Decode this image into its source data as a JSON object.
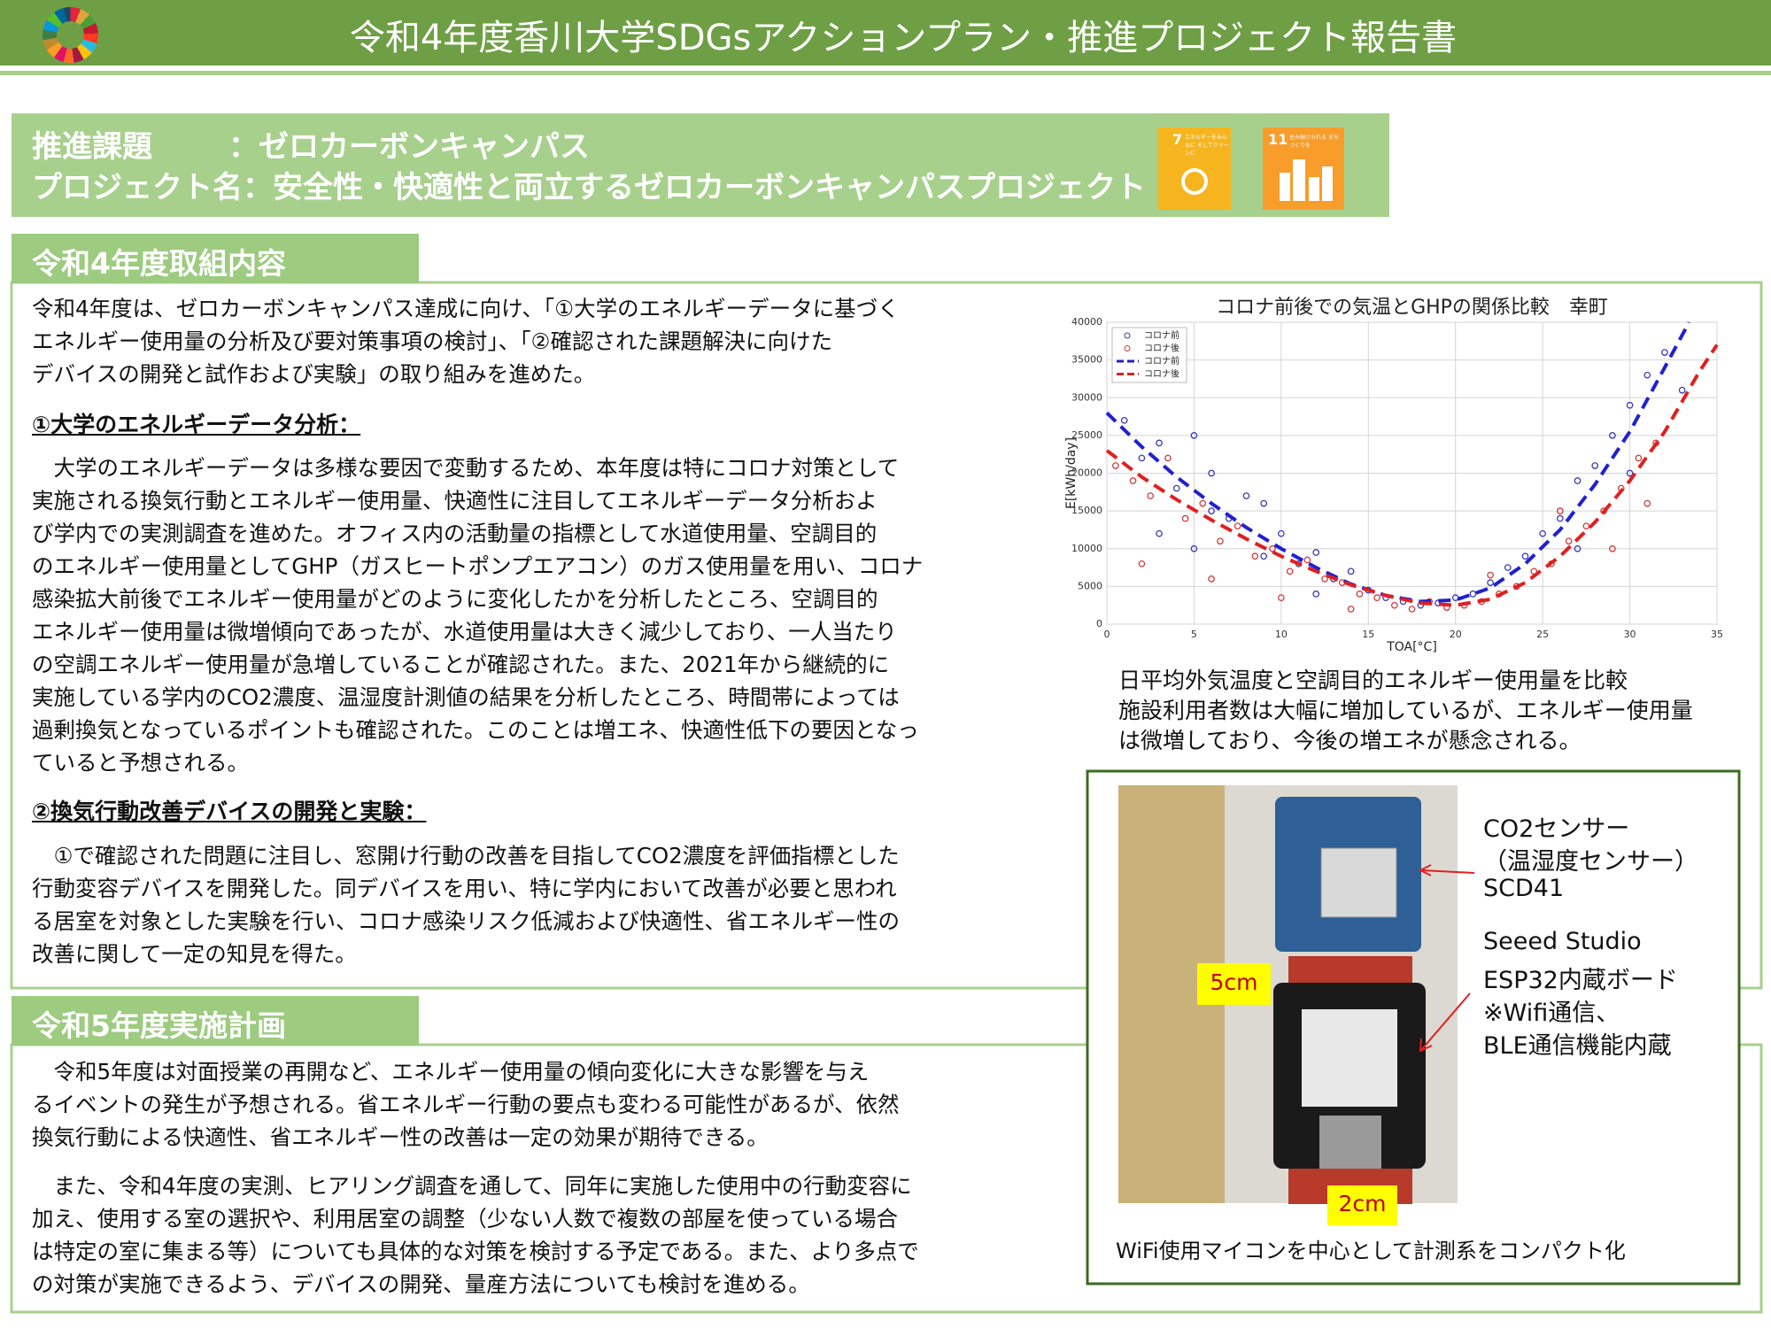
{
  "header": {
    "title": "令和4年度香川大学SDGsアクションプラン・推進プロジェクト報告書"
  },
  "project": {
    "theme_label": "推進課題",
    "theme": "：ゼロカーボンキャンパス",
    "project_line": "プロジェクト名：安全性・快適性と両立するゼロカーボンキャンパスプロジェクト"
  },
  "sdg_icons": [
    {
      "number": "7",
      "label": "エネルギーをみんなに そしてクリーンに"
    },
    {
      "number": "11",
      "label": "住み続けられる まちづくりを"
    }
  ],
  "sections": [
    {
      "heading": "令和4年度取組内容",
      "intro": [
        "令和4年度は、ゼロカーボンキャンパス達成に向け、「①大学のエネルギーデータに基づく",
        "エネルギー使用量の分析及び要対策事項の検討」、「②確認された課題解決に向けた",
        "デバイスの開発と試作および実験」の取り組みを進めた。"
      ],
      "subsections": [
        {
          "heading": "①大学のエネルギーデータ分析：",
          "lines": [
            "　大学のエネルギーデータは多様な要因で変動するため、本年度は特にコロナ対策として",
            "実施される換気行動とエネルギー使用量、快適性に注目してエネルギーデータ分析およ",
            "び学内での実測調査を進めた。オフィス内の活動量の指標として水道使用量、空調目的",
            "のエネルギー使用量としてGHP（ガスヒートポンプエアコン）のガス使用量を用い、コロナ",
            "感染拡大前後でエネルギー使用量がどのように変化したかを分析したところ、空調目的",
            "エネルギー使用量は微増傾向であったが、水道使用量は大きく減少しており、一人当たり",
            "の空調エネルギー使用量が急増していることが確認された。また、2021年から継続的に",
            "実施している学内のCO2濃度、温湿度計測値の結果を分析したところ、時間帯によっては",
            "過剰換気となっているポイントも確認された。このことは増エネ、快適性低下の要因となっ",
            "ていると予想される。"
          ]
        },
        {
          "heading": "②換気行動改善デバイスの開発と実験：",
          "lines": [
            "　①で確認された問題に注目し、窓開け行動の改善を目指してCO2濃度を評価指標とした",
            "行動変容デバイスを開発した。同デバイスを用い、特に学内において改善が必要と思われ",
            "る居室を対象とした実験を行い、コロナ感染リスク低減および快適性、省エネルギー性の",
            "改善に関して一定の知見を得た。"
          ]
        }
      ]
    },
    {
      "heading": "令和5年度実施計画",
      "paragraphs": [
        [
          "　令和5年度は対面授業の再開など、エネルギー使用量の傾向変化に大きな影響を与え",
          "るイベントの発生が予想される。省エネルギー行動の要点も変わる可能性があるが、依然",
          "換気行動による快適性、省エネルギー性の改善は一定の効果が期待できる。"
        ],
        [
          "　また、令和4年度の実測、ヒアリング調査を通して、同年に実施した使用中の行動変容に",
          "加え、使用する室の選択や、利用居室の調整（少ない人数で複数の部屋を使っている場合",
          "は特定の室に集まる等）についても具体的な対策を検討する予定である。また、より多点で",
          "の対策が実施できるよう、デバイスの開発、量産方法についても検討を進める。"
        ]
      ]
    }
  ],
  "chart_data": {
    "type": "scatter",
    "title": "コロナ前後での気温とGHPの関係比較　幸町",
    "x_label": "TOA[°C]",
    "y_label": "E[kWh/day]",
    "xlim": [
      0,
      35
    ],
    "xticks": [
      0,
      5,
      10,
      15,
      20,
      25,
      30,
      35
    ],
    "ylim": [
      0,
      40000
    ],
    "yticks": [
      0,
      5000,
      10000,
      15000,
      20000,
      25000,
      30000,
      35000,
      40000
    ],
    "grid": true,
    "legend": "upper-left",
    "series": [
      {
        "name": "コロナ前",
        "kind": "scatter",
        "color": "#3a3ab8",
        "x": [
          1,
          2,
          3,
          4,
          5,
          6,
          6,
          7,
          8,
          9,
          10,
          11,
          12,
          13,
          14,
          15,
          16,
          17,
          18,
          19,
          20,
          21,
          22,
          23,
          24,
          25,
          26,
          27,
          28,
          29,
          30,
          31,
          32,
          3,
          9,
          12,
          27,
          30,
          33,
          5
        ],
        "values": [
          27000,
          22000,
          24000,
          18000,
          25000,
          15000,
          20000,
          14000,
          17000,
          9000,
          12000,
          8000,
          9500,
          6000,
          7000,
          4500,
          3500,
          3000,
          2500,
          2800,
          3500,
          4000,
          5500,
          7500,
          9000,
          12000,
          14000,
          19000,
          21000,
          25000,
          29000,
          33000,
          36000,
          12000,
          16000,
          4000,
          10000,
          20000,
          31000,
          10000
        ]
      },
      {
        "name": "コロナ後",
        "kind": "scatter",
        "color": "#d23a3a",
        "x": [
          0.5,
          1.5,
          2.5,
          3.5,
          4.5,
          5.5,
          6.5,
          7.5,
          8.5,
          9.5,
          10.5,
          11.5,
          12.5,
          13.5,
          14.5,
          15.5,
          16.5,
          17.5,
          18.5,
          19.5,
          20.5,
          21.5,
          22.5,
          23.5,
          24.5,
          25.5,
          26.5,
          27.5,
          28.5,
          29.5,
          30.5,
          31.5,
          2,
          6,
          10,
          14,
          22,
          26,
          29,
          31
        ],
        "values": [
          21000,
          19000,
          17000,
          22000,
          14000,
          16000,
          11000,
          13000,
          9000,
          10000,
          7000,
          8500,
          6000,
          5500,
          4000,
          3500,
          2500,
          2000,
          3000,
          2200,
          2500,
          3000,
          4000,
          5000,
          7000,
          8000,
          11000,
          13000,
          15000,
          18000,
          22000,
          24000,
          8000,
          6000,
          3500,
          2000,
          6500,
          15000,
          10000,
          16000
        ]
      },
      {
        "name": "コロナ前",
        "kind": "line",
        "color": "#2020d0",
        "x": [
          0,
          2,
          4,
          6,
          8,
          10,
          12,
          14,
          16,
          18,
          20,
          22,
          24,
          26,
          28,
          30,
          32,
          33.4
        ],
        "values": [
          28000,
          23500,
          19500,
          16000,
          12800,
          10000,
          7500,
          5300,
          3800,
          3000,
          3200,
          4800,
          8000,
          12500,
          18500,
          25500,
          34000,
          40000
        ]
      },
      {
        "name": "コロナ後",
        "kind": "line",
        "color": "#e02020",
        "x": [
          0,
          2,
          4,
          6,
          8,
          10,
          12,
          14,
          16,
          18,
          20,
          22,
          24,
          26,
          28,
          30,
          32,
          34,
          35
        ],
        "values": [
          23000,
          19500,
          16500,
          13800,
          11300,
          9000,
          7000,
          5200,
          3800,
          2800,
          2500,
          3300,
          5500,
          9000,
          13500,
          19000,
          25500,
          33500,
          37000
        ]
      }
    ]
  },
  "figure_caption": [
    "日平均外気温度と空調目的エネルギー使用量を比較",
    "施設利用者数は大幅に増加しているが、エネルギー使用量",
    "は微増しており、今後の増エネが懸念される。"
  ],
  "photo": {
    "sensor_labels": [
      "CO2センサー",
      "（温湿度センサー）",
      "SCD41"
    ],
    "board_labels": [
      "Seeed Studio",
      "ESP32内蔵ボード",
      "※Wifi通信、",
      "BLE通信機能内蔵"
    ],
    "height_label": "5cm",
    "width_label": "2cm",
    "caption": "WiFi使用マイコンを中心として計測系をコンパクト化"
  }
}
